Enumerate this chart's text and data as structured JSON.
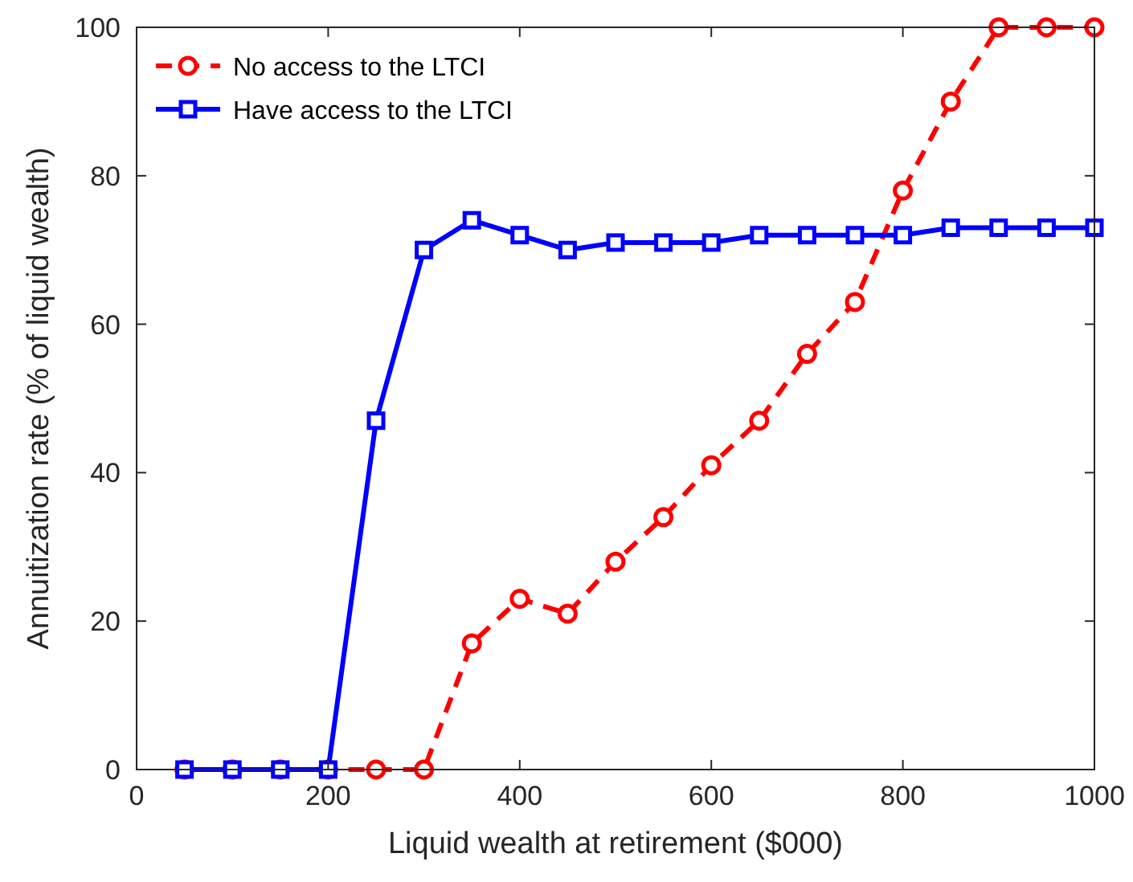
{
  "chart_data": {
    "type": "line",
    "xlabel": "Liquid wealth at retirement ($000)",
    "ylabel": "Annuitization rate (% of liquid wealth)",
    "x": [
      50,
      100,
      150,
      200,
      250,
      300,
      350,
      400,
      450,
      500,
      550,
      600,
      650,
      700,
      750,
      800,
      850,
      900,
      950,
      1000
    ],
    "series": [
      {
        "name": "No access to the LTCI",
        "color": "#ff0000",
        "marker": "circle",
        "line_style": "dashed",
        "values": [
          0,
          0,
          0,
          0,
          0,
          0,
          17,
          23,
          21,
          28,
          34,
          41,
          47,
          56,
          63,
          78,
          90,
          100,
          100,
          100
        ]
      },
      {
        "name": "Have access to the LTCI",
        "color": "#0000ff",
        "marker": "square",
        "line_style": "solid",
        "values": [
          0,
          0,
          0,
          0,
          47,
          70,
          74,
          72,
          70,
          71,
          71,
          71,
          72,
          72,
          72,
          72,
          73,
          73,
          73,
          73
        ]
      }
    ],
    "xlim": [
      0,
      1000
    ],
    "xticks": [
      0,
      200,
      400,
      600,
      800,
      1000
    ],
    "ylim": [
      0,
      100
    ],
    "yticks": [
      0,
      20,
      40,
      60,
      80,
      100
    ],
    "grid": false,
    "legend": "top left"
  }
}
